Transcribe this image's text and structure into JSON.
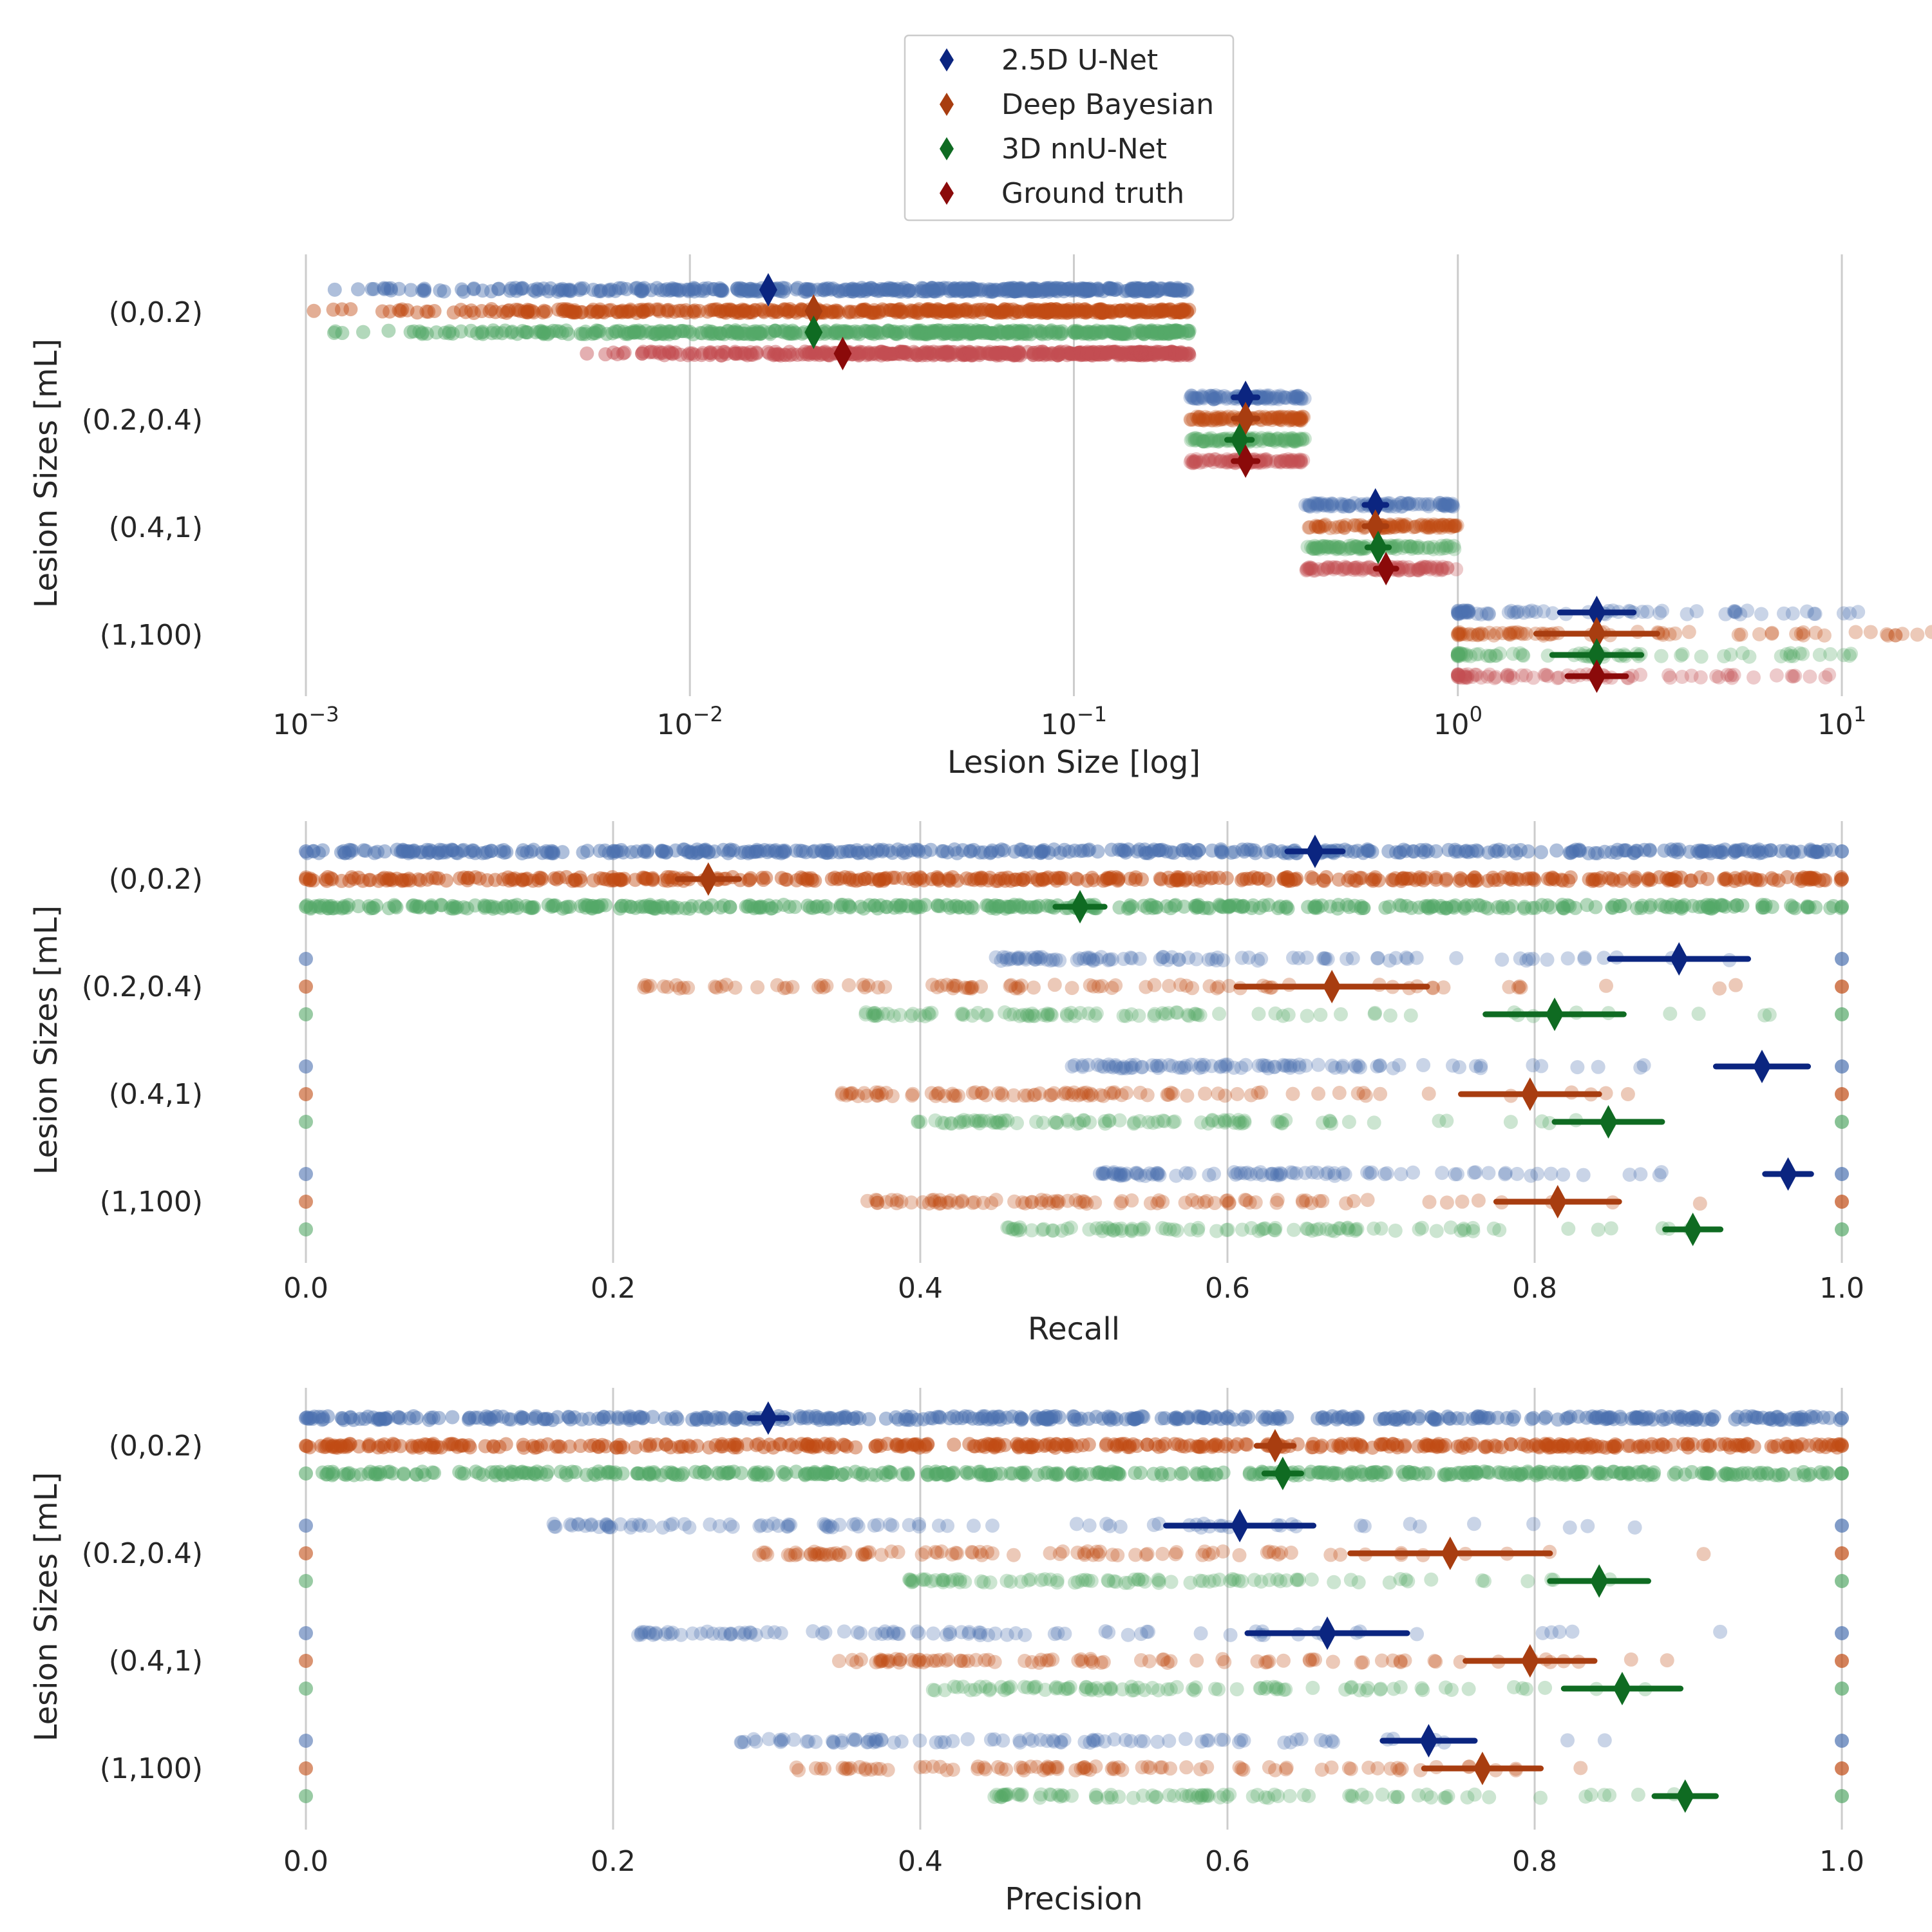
{
  "legend": {
    "placement": "top-center",
    "entries": [
      {
        "label": "2.5D U-Net",
        "color": "#0b2580"
      },
      {
        "label": "Deep Bayesian",
        "color": "#a83d10"
      },
      {
        "label": "3D nnU-Net",
        "color": "#0f6b22"
      },
      {
        "label": "Ground truth",
        "color": "#8b0a0a"
      }
    ]
  },
  "colors": {
    "point_colors": [
      "#4c72b0",
      "#c14c14",
      "#55a868",
      "#c44e52"
    ],
    "mean_colors": [
      "#0b2580",
      "#a83d10",
      "#0f6b22",
      "#8b0a0a"
    ],
    "grid": "#cccccc"
  },
  "chart_data": [
    {
      "type": "scatter",
      "name": "size",
      "xlabel": "Lesion Size [log]",
      "ylabel": "Lesion Sizes [mL]",
      "xscale": "log",
      "xlim": [
        0.001,
        20
      ],
      "grid": "vertical",
      "categories": [
        "(0,0.2)",
        "(0.2,0.4)",
        "(0.4,1)",
        "(1,100)"
      ],
      "xticks": [
        {
          "value": 0.001,
          "base": "10",
          "exp": "−3"
        },
        {
          "value": 0.01,
          "base": "10",
          "exp": "−2"
        },
        {
          "value": 0.1,
          "base": "10",
          "exp": "−1"
        },
        {
          "value": 1,
          "base": "10",
          "exp": "0"
        },
        {
          "value": 10,
          "base": "10",
          "exp": "1"
        }
      ],
      "series": [
        {
          "name": "2.5D U-Net",
          "ranges": [
            [
              0.001,
              0.2
            ],
            [
              0.2,
              0.4
            ],
            [
              0.4,
              1.0
            ],
            [
              1.0,
              12
            ]
          ],
          "means": [
            0.016,
            0.28,
            0.61,
            2.3
          ],
          "errors": [
            0,
            0.02,
            0.04,
            0.5
          ]
        },
        {
          "name": "Deep Bayesian",
          "ranges": [
            [
              0.001,
              0.2
            ],
            [
              0.2,
              0.4
            ],
            [
              0.4,
              1.0
            ],
            [
              1.0,
              18
            ]
          ],
          "means": [
            0.021,
            0.28,
            0.61,
            2.3
          ],
          "errors": [
            0,
            0.02,
            0.04,
            0.8
          ]
        },
        {
          "name": "3D nnU-Net",
          "ranges": [
            [
              0.001,
              0.2
            ],
            [
              0.2,
              0.4
            ],
            [
              0.4,
              1.0
            ],
            [
              1.0,
              11
            ]
          ],
          "means": [
            0.021,
            0.27,
            0.62,
            2.3
          ],
          "errors": [
            0,
            0.02,
            0.04,
            0.6
          ]
        },
        {
          "name": "Ground truth",
          "ranges": [
            [
              0.005,
              0.2
            ],
            [
              0.2,
              0.4
            ],
            [
              0.4,
              1.0
            ],
            [
              1.0,
              10
            ]
          ],
          "means": [
            0.025,
            0.28,
            0.65,
            2.3
          ],
          "errors": [
            0,
            0.02,
            0.04,
            0.4
          ]
        }
      ]
    },
    {
      "type": "scatter",
      "name": "recall",
      "xlabel": "Recall",
      "ylabel": "Lesion Sizes [mL]",
      "xlim": [
        0,
        1
      ],
      "grid": "vertical",
      "categories": [
        "(0,0.2)",
        "(0.2,0.4)",
        "(0.4,1)",
        "(1,100)"
      ],
      "xticks": [
        {
          "value": 0,
          "label": "0.0"
        },
        {
          "value": 0.2,
          "label": "0.2"
        },
        {
          "value": 0.4,
          "label": "0.4"
        },
        {
          "value": 0.6,
          "label": "0.6"
        },
        {
          "value": 0.8,
          "label": "0.8"
        },
        {
          "value": 1,
          "label": "1.0"
        }
      ],
      "series": [
        {
          "name": "2.5D U-Net",
          "means": [
            0.657,
            0.894,
            0.948,
            0.965
          ],
          "errors": [
            0.018,
            0.045,
            0.03,
            0.015
          ]
        },
        {
          "name": "Deep Bayesian",
          "means": [
            0.262,
            0.668,
            0.797,
            0.815
          ],
          "errors": [
            0.02,
            0.062,
            0.045,
            0.04
          ]
        },
        {
          "name": "3D nnU-Net",
          "means": [
            0.504,
            0.813,
            0.848,
            0.903
          ],
          "errors": [
            0.016,
            0.045,
            0.035,
            0.018
          ]
        }
      ]
    },
    {
      "type": "scatter",
      "name": "precision",
      "xlabel": "Precision",
      "ylabel": "Lesion Sizes [mL]",
      "xlim": [
        0,
        1
      ],
      "grid": "vertical",
      "categories": [
        "(0,0.2)",
        "(0.2,0.4)",
        "(0.4,1)",
        "(1,100)"
      ],
      "xticks": [
        {
          "value": 0,
          "label": "0.0"
        },
        {
          "value": 0.2,
          "label": "0.2"
        },
        {
          "value": 0.4,
          "label": "0.4"
        },
        {
          "value": 0.6,
          "label": "0.6"
        },
        {
          "value": 0.8,
          "label": "0.8"
        },
        {
          "value": 1,
          "label": "1.0"
        }
      ],
      "series": [
        {
          "name": "2.5D U-Net",
          "means": [
            0.301,
            0.608,
            0.665,
            0.731
          ],
          "errors": [
            0.012,
            0.048,
            0.052,
            0.03
          ]
        },
        {
          "name": "Deep Bayesian",
          "means": [
            0.631,
            0.745,
            0.797,
            0.766
          ],
          "errors": [
            0.012,
            0.065,
            0.042,
            0.038
          ]
        },
        {
          "name": "3D nnU-Net",
          "means": [
            0.636,
            0.842,
            0.857,
            0.898
          ],
          "errors": [
            0.012,
            0.032,
            0.038,
            0.02
          ]
        }
      ]
    }
  ]
}
